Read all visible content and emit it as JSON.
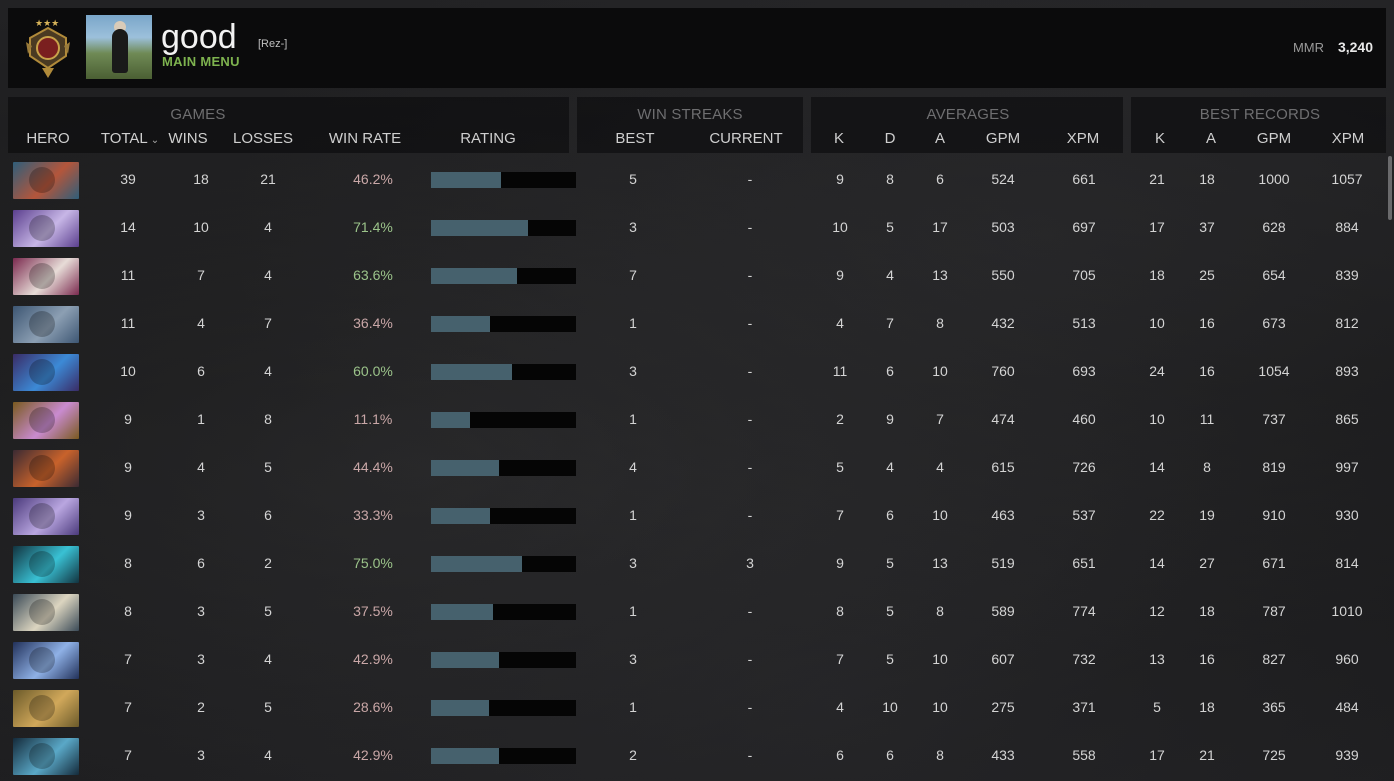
{
  "header": {
    "player_name": "good",
    "player_tag": "[Rez-]",
    "main_menu": "MAIN MENU",
    "mmr_label": "MMR",
    "mmr_value": "3,240"
  },
  "groups": {
    "games": "GAMES",
    "win_streaks": "WIN STREAKS",
    "averages": "AVERAGES",
    "best_records": "BEST RECORDS"
  },
  "columns": {
    "hero": "HERO",
    "total": "TOTAL",
    "wins": "WINS",
    "losses": "LOSSES",
    "win_rate": "WIN RATE",
    "rating": "RATING",
    "best": "BEST",
    "current": "CURRENT",
    "avg_k": "K",
    "avg_d": "D",
    "avg_a": "A",
    "avg_gpm": "GPM",
    "avg_xpm": "XPM",
    "best_k": "K",
    "best_a": "A",
    "best_gpm": "GPM",
    "best_xpm": "XPM"
  },
  "colors": {
    "win_rate_good": "#9bc38a",
    "win_rate_bad": "#c9a7a7",
    "rating_bar": "#46616d",
    "accent_green": "#7eb34f"
  },
  "rows": [
    {
      "total": "39",
      "wins": "18",
      "losses": "21",
      "win_rate": "46.2%",
      "rating": 0.48,
      "best": "5",
      "current": "-",
      "k": "9",
      "d": "8",
      "a": "6",
      "gpm": "524",
      "xpm": "661",
      "bk": "21",
      "ba": "18",
      "bgpm": "1000",
      "bxpm": "1057",
      "c1": "#2f5e7a",
      "c2": "#b4563b"
    },
    {
      "total": "14",
      "wins": "10",
      "losses": "4",
      "win_rate": "71.4%",
      "rating": 0.67,
      "best": "3",
      "current": "-",
      "k": "10",
      "d": "5",
      "a": "17",
      "gpm": "503",
      "xpm": "697",
      "bk": "17",
      "ba": "37",
      "bgpm": "628",
      "bxpm": "884",
      "c1": "#5b3f8e",
      "c2": "#c7b6e6"
    },
    {
      "total": "11",
      "wins": "7",
      "losses": "4",
      "win_rate": "63.6%",
      "rating": 0.59,
      "best": "7",
      "current": "-",
      "k": "9",
      "d": "4",
      "a": "13",
      "gpm": "550",
      "xpm": "705",
      "bk": "18",
      "ba": "25",
      "bgpm": "654",
      "bxpm": "839",
      "c1": "#7b2a4f",
      "c2": "#e7dcd7"
    },
    {
      "total": "11",
      "wins": "4",
      "losses": "7",
      "win_rate": "36.4%",
      "rating": 0.41,
      "best": "1",
      "current": "-",
      "k": "4",
      "d": "7",
      "a": "8",
      "gpm": "432",
      "xpm": "513",
      "bk": "10",
      "ba": "16",
      "bgpm": "673",
      "bxpm": "812",
      "c1": "#3d5673",
      "c2": "#8c9fb3"
    },
    {
      "total": "10",
      "wins": "6",
      "losses": "4",
      "win_rate": "60.0%",
      "rating": 0.56,
      "best": "3",
      "current": "-",
      "k": "11",
      "d": "6",
      "a": "10",
      "gpm": "760",
      "xpm": "693",
      "bk": "24",
      "ba": "16",
      "bgpm": "1054",
      "bxpm": "893",
      "c1": "#3a2c66",
      "c2": "#3c8ad6"
    },
    {
      "total": "9",
      "wins": "1",
      "losses": "8",
      "win_rate": "11.1%",
      "rating": 0.27,
      "best": "1",
      "current": "-",
      "k": "2",
      "d": "9",
      "a": "7",
      "gpm": "474",
      "xpm": "460",
      "bk": "10",
      "ba": "11",
      "bgpm": "737",
      "bxpm": "865",
      "c1": "#7a5a1f",
      "c2": "#c98bd0"
    },
    {
      "total": "9",
      "wins": "4",
      "losses": "5",
      "win_rate": "44.4%",
      "rating": 0.47,
      "best": "4",
      "current": "-",
      "k": "5",
      "d": "4",
      "a": "4",
      "gpm": "615",
      "xpm": "726",
      "bk": "14",
      "ba": "8",
      "bgpm": "819",
      "bxpm": "997",
      "c1": "#3b2a33",
      "c2": "#c8622b"
    },
    {
      "total": "9",
      "wins": "3",
      "losses": "6",
      "win_rate": "33.3%",
      "rating": 0.41,
      "best": "1",
      "current": "-",
      "k": "7",
      "d": "6",
      "a": "10",
      "gpm": "463",
      "xpm": "537",
      "bk": "22",
      "ba": "19",
      "bgpm": "910",
      "bxpm": "930",
      "c1": "#4b3a7c",
      "c2": "#b9a6e0"
    },
    {
      "total": "8",
      "wins": "6",
      "losses": "2",
      "win_rate": "75.0%",
      "rating": 0.63,
      "best": "3",
      "current": "3",
      "k": "9",
      "d": "5",
      "a": "13",
      "gpm": "519",
      "xpm": "651",
      "bk": "14",
      "ba": "27",
      "bgpm": "671",
      "bxpm": "814",
      "c1": "#12333f",
      "c2": "#39c1d4"
    },
    {
      "total": "8",
      "wins": "3",
      "losses": "5",
      "win_rate": "37.5%",
      "rating": 0.43,
      "best": "1",
      "current": "-",
      "k": "8",
      "d": "5",
      "a": "8",
      "gpm": "589",
      "xpm": "774",
      "bk": "12",
      "ba": "18",
      "bgpm": "787",
      "bxpm": "1010",
      "c1": "#3a4a57",
      "c2": "#dcd5c0"
    },
    {
      "total": "7",
      "wins": "3",
      "losses": "4",
      "win_rate": "42.9%",
      "rating": 0.47,
      "best": "3",
      "current": "-",
      "k": "7",
      "d": "5",
      "a": "10",
      "gpm": "607",
      "xpm": "732",
      "bk": "13",
      "ba": "16",
      "bgpm": "827",
      "bxpm": "960",
      "c1": "#22315a",
      "c2": "#8fb1e6"
    },
    {
      "total": "7",
      "wins": "2",
      "losses": "5",
      "win_rate": "28.6%",
      "rating": 0.4,
      "best": "1",
      "current": "-",
      "k": "4",
      "d": "10",
      "a": "10",
      "gpm": "275",
      "xpm": "371",
      "bk": "5",
      "ba": "18",
      "bgpm": "365",
      "bxpm": "484",
      "c1": "#6b5a2a",
      "c2": "#d1a85a"
    },
    {
      "total": "7",
      "wins": "3",
      "losses": "4",
      "win_rate": "42.9%",
      "rating": 0.47,
      "best": "2",
      "current": "-",
      "k": "6",
      "d": "6",
      "a": "8",
      "gpm": "433",
      "xpm": "558",
      "bk": "17",
      "ba": "21",
      "bgpm": "725",
      "bxpm": "939",
      "c1": "#142a3a",
      "c2": "#5aa8c7"
    }
  ]
}
